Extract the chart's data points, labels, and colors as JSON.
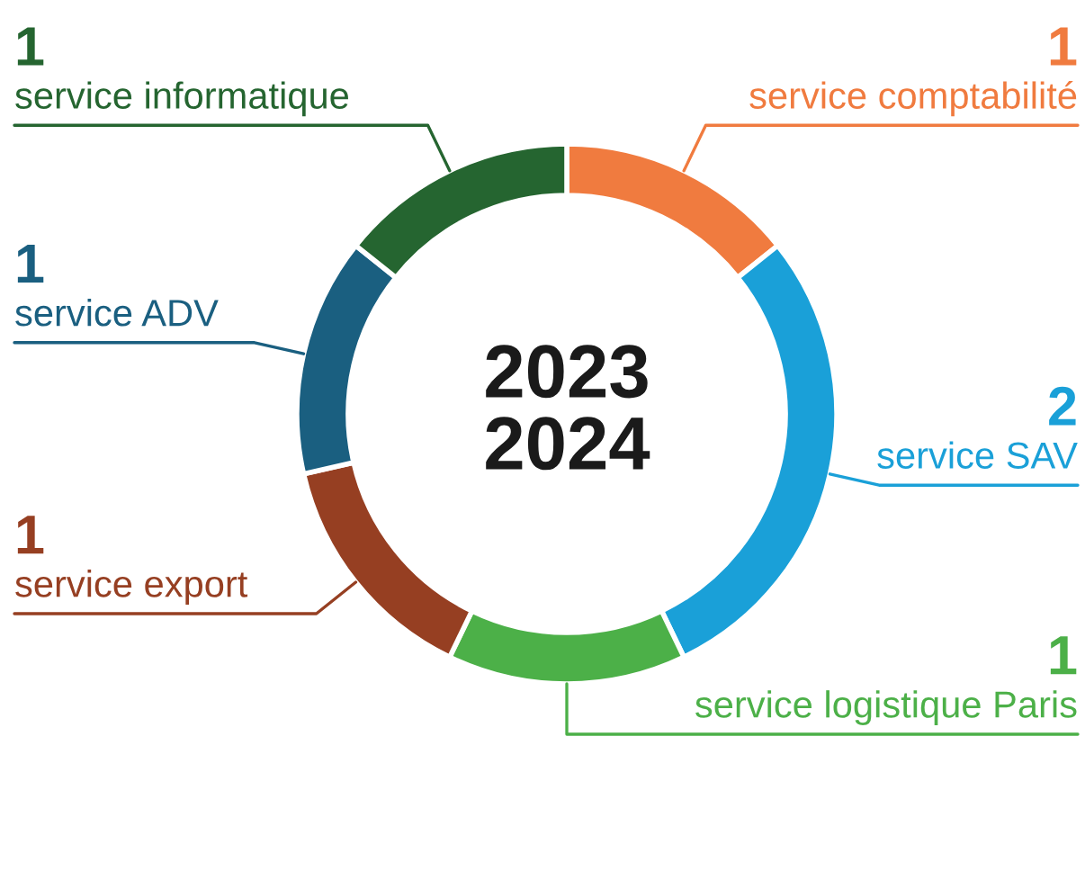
{
  "chart_data": {
    "type": "donut",
    "categories": [
      "service comptabilité",
      "service SAV",
      "service logistique Paris",
      "service export",
      "service ADV",
      "service informatique"
    ],
    "values": [
      1,
      2,
      1,
      1,
      1,
      1
    ],
    "colors": [
      "#f07b3f",
      "#1aa0d8",
      "#4cb048",
      "#963f22",
      "#1a5f80",
      "#256530"
    ],
    "data_labels": true,
    "annotations": [
      "2023",
      "2024"
    ]
  }
}
